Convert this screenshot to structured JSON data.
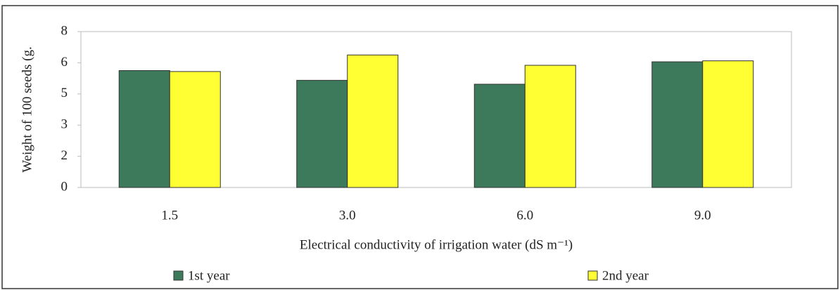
{
  "chart_data": {
    "type": "bar",
    "y_label": "Weight of 100 seeds (g.",
    "x_label": "Electrical conductivity of irrigation water (dS m⁻¹)",
    "categories": [
      "1.5",
      "3.0",
      "6.0",
      "9.0"
    ],
    "series": [
      {
        "name": "1st year",
        "color": "#3d7a5c",
        "values": [
          6.0,
          5.5,
          5.3,
          6.45
        ]
      },
      {
        "name": "2nd year",
        "color": "#ffff33",
        "values": [
          5.95,
          6.8,
          6.27,
          6.5
        ]
      }
    ],
    "ylim": [
      0,
      8
    ],
    "yticks": [
      0,
      {
        "value": 1.6,
        "label": "2"
      },
      {
        "value": 3.2,
        "label": "3"
      },
      {
        "value": 4.8,
        "label": "5"
      },
      {
        "value": 6.4,
        "label": "6"
      },
      8
    ],
    "grid": false
  }
}
